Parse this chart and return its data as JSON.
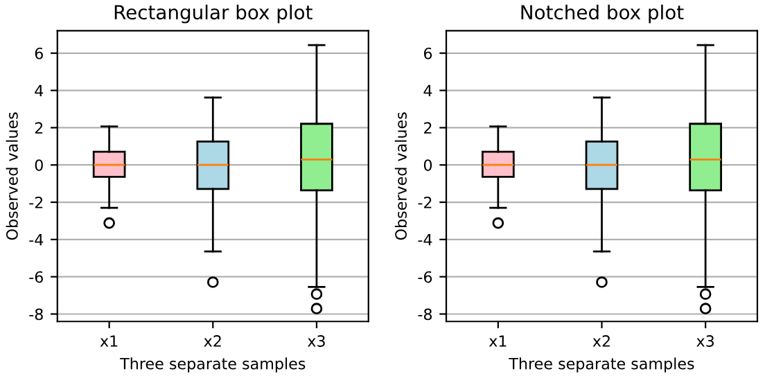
{
  "chart_data": [
    {
      "type": "box",
      "title": "Rectangular box plot",
      "xlabel": "Three separate samples",
      "ylabel": "Observed values",
      "categories": [
        "x1",
        "x2",
        "x3"
      ],
      "colors": [
        "#ffc0cb",
        "#add8e6",
        "#90ee90"
      ],
      "boxes": [
        {
          "low": -2.3,
          "q1": -0.64,
          "median": 0.0,
          "q3": 0.71,
          "high": 2.07,
          "outliers": [
            -3.12
          ]
        },
        {
          "low": -4.64,
          "q1": -1.29,
          "median": 0.0,
          "q3": 1.26,
          "high": 3.62,
          "outliers": [
            -6.29
          ]
        },
        {
          "low": -6.55,
          "q1": -1.36,
          "median": 0.29,
          "q3": 2.21,
          "high": 6.43,
          "outliers": [
            -6.93,
            -7.71
          ]
        }
      ],
      "ylim": [
        -8.4,
        7.2
      ],
      "yticks": [
        -8,
        -6,
        -4,
        -2,
        0,
        2,
        4,
        6
      ],
      "grid": "y"
    },
    {
      "type": "box",
      "title": "Notched box plot",
      "xlabel": "Three separate samples",
      "ylabel": "Observed values",
      "categories": [
        "x1",
        "x2",
        "x3"
      ],
      "colors": [
        "#ffc0cb",
        "#add8e6",
        "#90ee90"
      ],
      "boxes": [
        {
          "low": -2.3,
          "q1": -0.64,
          "median": 0.0,
          "q3": 0.71,
          "high": 2.07,
          "outliers": [
            -3.12
          ]
        },
        {
          "low": -4.64,
          "q1": -1.29,
          "median": 0.0,
          "q3": 1.26,
          "high": 3.62,
          "outliers": [
            -6.29
          ]
        },
        {
          "low": -6.55,
          "q1": -1.36,
          "median": 0.29,
          "q3": 2.21,
          "high": 6.43,
          "outliers": [
            -6.93,
            -7.71
          ]
        }
      ],
      "ylim": [
        -8.4,
        7.2
      ],
      "yticks": [
        -8,
        -6,
        -4,
        -2,
        0,
        2,
        4,
        6
      ],
      "grid": "y"
    }
  ]
}
